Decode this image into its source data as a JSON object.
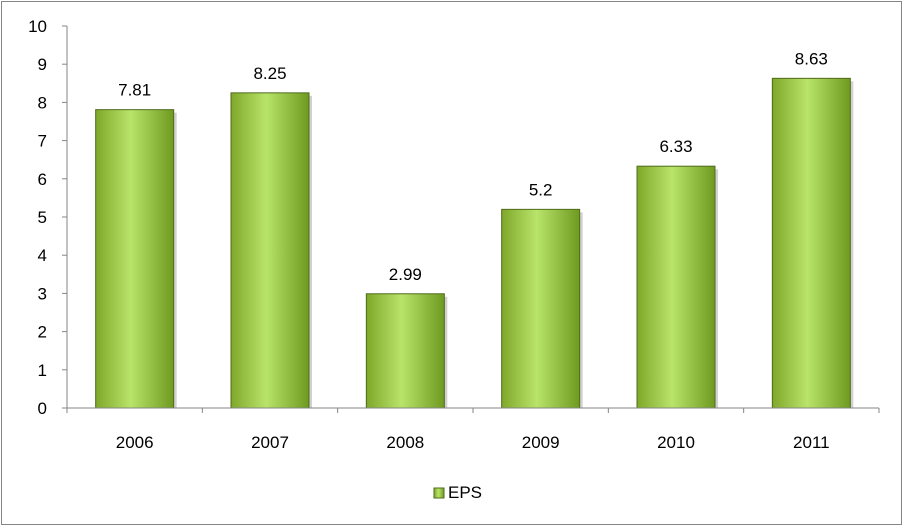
{
  "chart_data": {
    "type": "bar",
    "categories": [
      "2006",
      "2007",
      "2008",
      "2009",
      "2010",
      "2011"
    ],
    "series": [
      {
        "name": "EPS",
        "values": [
          7.81,
          8.25,
          2.99,
          5.2,
          6.33,
          8.63
        ]
      }
    ],
    "ylim": [
      0,
      10
    ],
    "yticks": [
      0,
      1,
      2,
      3,
      4,
      5,
      6,
      7,
      8,
      9,
      10
    ],
    "grid": false,
    "legend": "bottom",
    "colors": {
      "bar_light": "#b9e46a",
      "bar_dark": "#6e9a20",
      "bar_edge": "#4f6b1a",
      "axis": "#868686"
    }
  }
}
